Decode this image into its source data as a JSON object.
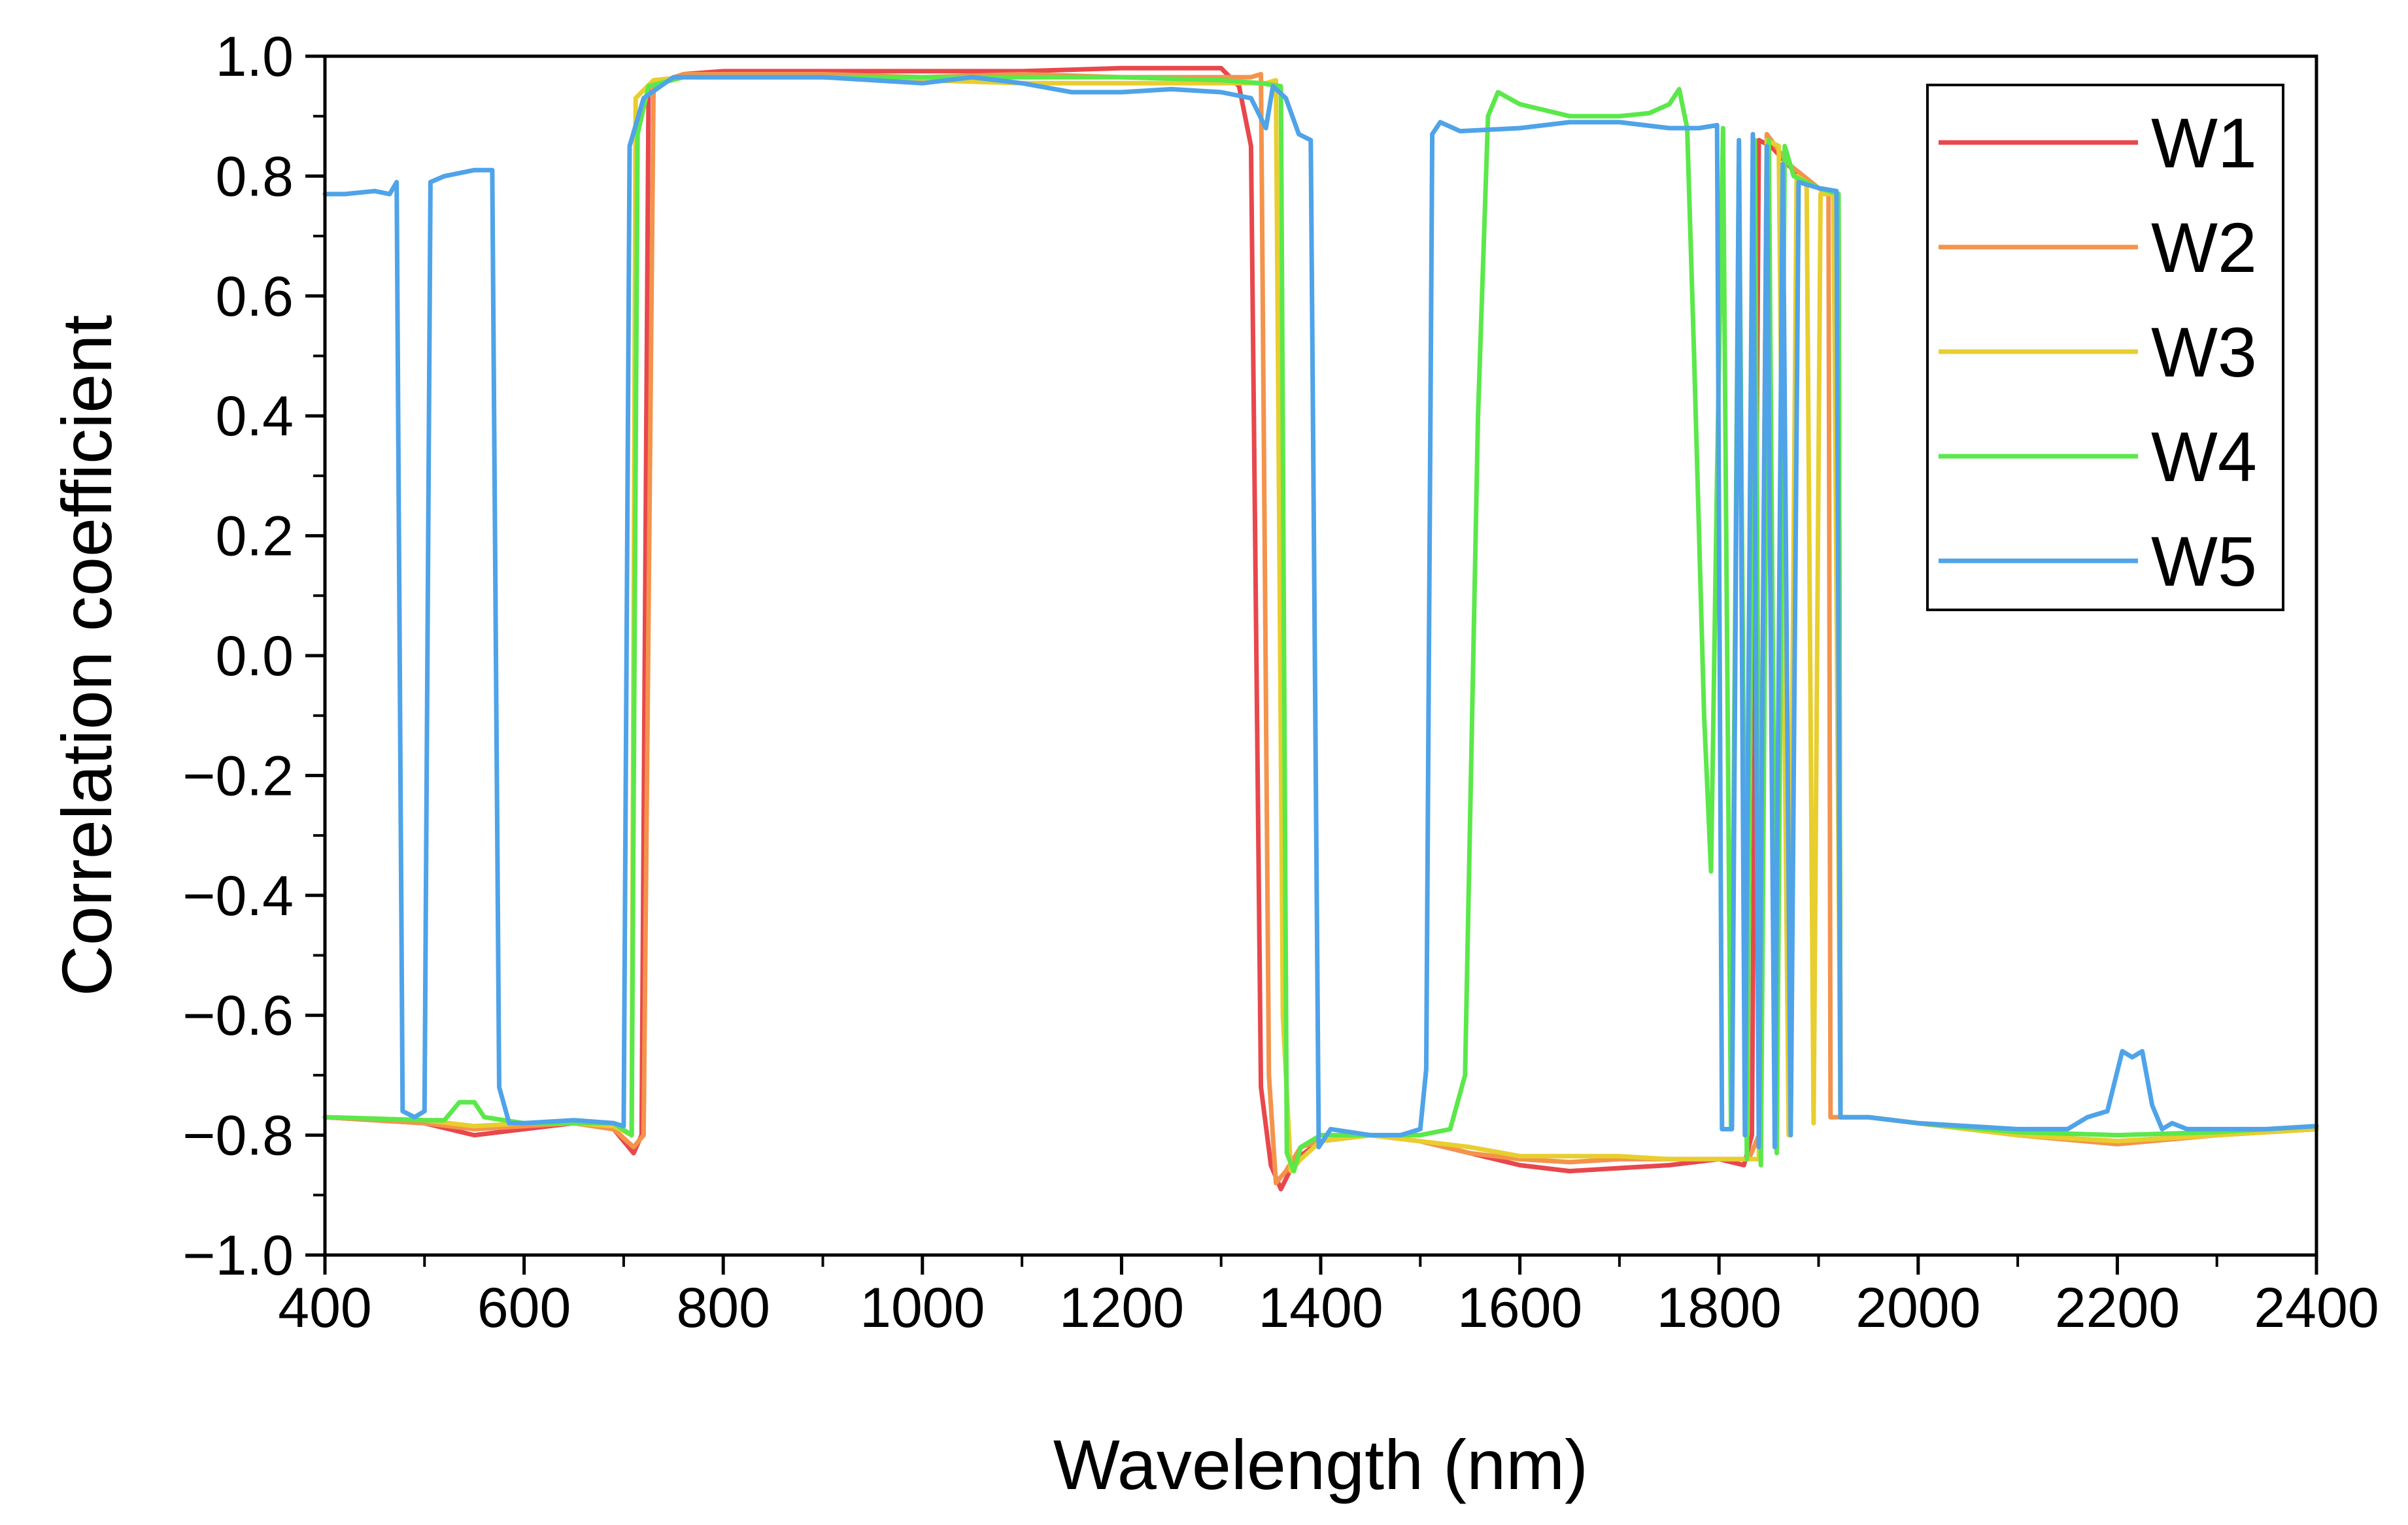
{
  "chart_data": {
    "type": "line",
    "title": "",
    "xlabel": "Wavelength (nm)",
    "ylabel": "Correlation coefficient",
    "xlim": [
      400,
      2400
    ],
    "ylim": [
      -1.0,
      1.0
    ],
    "grid": false,
    "legend_position": "top-right",
    "x_ticks": [
      400,
      600,
      800,
      1000,
      1200,
      1400,
      1600,
      1800,
      2000,
      2200,
      2400
    ],
    "x_tick_labels": [
      "400",
      "600",
      "800",
      "1000",
      "1200",
      "1400",
      "1600",
      "1800",
      "2000",
      "2200",
      "2400"
    ],
    "y_ticks": [
      -1.0,
      -0.8,
      -0.6,
      -0.4,
      -0.2,
      0.0,
      0.2,
      0.4,
      0.6,
      0.8,
      1.0
    ],
    "y_tick_labels": [
      "−1.0",
      "−0.8",
      "−0.6",
      "−0.4",
      "−0.2",
      "0.0",
      "0.2",
      "0.4",
      "0.6",
      "0.8",
      "1.0"
    ],
    "series": [
      {
        "name": "W1",
        "color": "#E8474C",
        "points": [
          [
            400,
            -0.77
          ],
          [
            500,
            -0.78
          ],
          [
            550,
            -0.8
          ],
          [
            600,
            -0.79
          ],
          [
            650,
            -0.78
          ],
          [
            690,
            -0.79
          ],
          [
            710,
            -0.83
          ],
          [
            718,
            -0.8
          ],
          [
            725,
            0.95
          ],
          [
            760,
            0.97
          ],
          [
            800,
            0.975
          ],
          [
            900,
            0.975
          ],
          [
            1000,
            0.975
          ],
          [
            1100,
            0.975
          ],
          [
            1200,
            0.98
          ],
          [
            1300,
            0.98
          ],
          [
            1318,
            0.95
          ],
          [
            1330,
            0.85
          ],
          [
            1340,
            -0.72
          ],
          [
            1350,
            -0.85
          ],
          [
            1360,
            -0.89
          ],
          [
            1375,
            -0.84
          ],
          [
            1400,
            -0.81
          ],
          [
            1450,
            -0.8
          ],
          [
            1500,
            -0.81
          ],
          [
            1550,
            -0.83
          ],
          [
            1600,
            -0.85
          ],
          [
            1650,
            -0.86
          ],
          [
            1700,
            -0.855
          ],
          [
            1750,
            -0.85
          ],
          [
            1800,
            -0.84
          ],
          [
            1825,
            -0.85
          ],
          [
            1833,
            -0.8
          ],
          [
            1840,
            0.86
          ],
          [
            1852,
            0.85
          ],
          [
            1880,
            0.8
          ],
          [
            1900,
            0.78
          ],
          [
            1920,
            0.77
          ],
          [
            1922,
            -0.77
          ],
          [
            1950,
            -0.77
          ],
          [
            2000,
            -0.78
          ],
          [
            2100,
            -0.8
          ],
          [
            2200,
            -0.81
          ],
          [
            2300,
            -0.8
          ],
          [
            2400,
            -0.79
          ]
        ]
      },
      {
        "name": "W2",
        "color": "#F4934C",
        "points": [
          [
            400,
            -0.77
          ],
          [
            500,
            -0.78
          ],
          [
            550,
            -0.79
          ],
          [
            600,
            -0.785
          ],
          [
            650,
            -0.78
          ],
          [
            690,
            -0.79
          ],
          [
            710,
            -0.82
          ],
          [
            720,
            -0.8
          ],
          [
            730,
            0.95
          ],
          [
            760,
            0.97
          ],
          [
            800,
            0.97
          ],
          [
            900,
            0.97
          ],
          [
            1000,
            0.965
          ],
          [
            1100,
            0.97
          ],
          [
            1200,
            0.965
          ],
          [
            1300,
            0.965
          ],
          [
            1330,
            0.965
          ],
          [
            1340,
            0.97
          ],
          [
            1348,
            -0.7
          ],
          [
            1355,
            -0.88
          ],
          [
            1365,
            -0.86
          ],
          [
            1380,
            -0.82
          ],
          [
            1400,
            -0.81
          ],
          [
            1450,
            -0.8
          ],
          [
            1500,
            -0.81
          ],
          [
            1550,
            -0.83
          ],
          [
            1600,
            -0.84
          ],
          [
            1650,
            -0.845
          ],
          [
            1700,
            -0.84
          ],
          [
            1750,
            -0.84
          ],
          [
            1800,
            -0.84
          ],
          [
            1830,
            -0.84
          ],
          [
            1840,
            -0.8
          ],
          [
            1848,
            0.87
          ],
          [
            1870,
            0.82
          ],
          [
            1900,
            0.78
          ],
          [
            1910,
            0.77
          ],
          [
            1912,
            -0.77
          ],
          [
            1950,
            -0.77
          ],
          [
            2000,
            -0.78
          ],
          [
            2100,
            -0.8
          ],
          [
            2200,
            -0.815
          ],
          [
            2300,
            -0.8
          ],
          [
            2400,
            -0.79
          ]
        ]
      },
      {
        "name": "W3",
        "color": "#E8CE2E",
        "points": [
          [
            400,
            -0.77
          ],
          [
            500,
            -0.775
          ],
          [
            550,
            -0.785
          ],
          [
            600,
            -0.78
          ],
          [
            650,
            -0.78
          ],
          [
            690,
            -0.785
          ],
          [
            708,
            -0.8
          ],
          [
            712,
            0.93
          ],
          [
            730,
            0.96
          ],
          [
            760,
            0.965
          ],
          [
            800,
            0.965
          ],
          [
            900,
            0.965
          ],
          [
            1000,
            0.96
          ],
          [
            1100,
            0.955
          ],
          [
            1200,
            0.955
          ],
          [
            1300,
            0.955
          ],
          [
            1345,
            0.955
          ],
          [
            1355,
            0.96
          ],
          [
            1362,
            -0.6
          ],
          [
            1370,
            -0.86
          ],
          [
            1380,
            -0.84
          ],
          [
            1400,
            -0.81
          ],
          [
            1450,
            -0.8
          ],
          [
            1500,
            -0.81
          ],
          [
            1550,
            -0.82
          ],
          [
            1600,
            -0.835
          ],
          [
            1650,
            -0.835
          ],
          [
            1700,
            -0.835
          ],
          [
            1750,
            -0.84
          ],
          [
            1800,
            -0.84
          ],
          [
            1840,
            -0.84
          ],
          [
            1848,
            0.86
          ],
          [
            1860,
            0.85
          ],
          [
            1870,
            -0.8
          ],
          [
            1878,
            0.8
          ],
          [
            1888,
            0.79
          ],
          [
            1895,
            -0.78
          ],
          [
            1902,
            0.77
          ],
          [
            1915,
            0.77
          ],
          [
            1922,
            -0.77
          ],
          [
            1950,
            -0.77
          ],
          [
            2000,
            -0.78
          ],
          [
            2100,
            -0.8
          ],
          [
            2200,
            -0.81
          ],
          [
            2300,
            -0.8
          ],
          [
            2400,
            -0.79
          ]
        ]
      },
      {
        "name": "W4",
        "color": "#5BE84A",
        "points": [
          [
            400,
            -0.77
          ],
          [
            500,
            -0.775
          ],
          [
            520,
            -0.775
          ],
          [
            535,
            -0.745
          ],
          [
            550,
            -0.745
          ],
          [
            560,
            -0.77
          ],
          [
            600,
            -0.78
          ],
          [
            650,
            -0.78
          ],
          [
            690,
            -0.78
          ],
          [
            708,
            -0.8
          ],
          [
            714,
            0.87
          ],
          [
            725,
            0.95
          ],
          [
            760,
            0.965
          ],
          [
            800,
            0.965
          ],
          [
            900,
            0.965
          ],
          [
            1000,
            0.965
          ],
          [
            1100,
            0.965
          ],
          [
            1200,
            0.965
          ],
          [
            1300,
            0.96
          ],
          [
            1340,
            0.955
          ],
          [
            1360,
            0.95
          ],
          [
            1366,
            -0.83
          ],
          [
            1373,
            -0.86
          ],
          [
            1380,
            -0.82
          ],
          [
            1400,
            -0.8
          ],
          [
            1450,
            -0.8
          ],
          [
            1500,
            -0.8
          ],
          [
            1530,
            -0.79
          ],
          [
            1545,
            -0.7
          ],
          [
            1558,
            0.4
          ],
          [
            1568,
            0.9
          ],
          [
            1578,
            0.94
          ],
          [
            1600,
            0.92
          ],
          [
            1650,
            0.9
          ],
          [
            1700,
            0.9
          ],
          [
            1730,
            0.905
          ],
          [
            1750,
            0.92
          ],
          [
            1760,
            0.945
          ],
          [
            1768,
            0.88
          ],
          [
            1775,
            0.5
          ],
          [
            1785,
            -0.1
          ],
          [
            1792,
            -0.36
          ],
          [
            1798,
            0.3
          ],
          [
            1804,
            0.88
          ],
          [
            1812,
            -0.79
          ],
          [
            1820,
            0.85
          ],
          [
            1828,
            -0.84
          ],
          [
            1836,
            0.86
          ],
          [
            1842,
            -0.85
          ],
          [
            1850,
            0.86
          ],
          [
            1858,
            -0.83
          ],
          [
            1866,
            0.85
          ],
          [
            1875,
            0.8
          ],
          [
            1900,
            0.78
          ],
          [
            1920,
            0.77
          ],
          [
            1922,
            -0.77
          ],
          [
            1950,
            -0.77
          ],
          [
            2000,
            -0.78
          ],
          [
            2100,
            -0.795
          ],
          [
            2200,
            -0.8
          ],
          [
            2300,
            -0.795
          ],
          [
            2400,
            -0.785
          ]
        ]
      },
      {
        "name": "W5",
        "color": "#4FA3E8",
        "points": [
          [
            400,
            0.77
          ],
          [
            420,
            0.77
          ],
          [
            450,
            0.775
          ],
          [
            465,
            0.77
          ],
          [
            472,
            0.79
          ],
          [
            478,
            -0.76
          ],
          [
            490,
            -0.77
          ],
          [
            500,
            -0.76
          ],
          [
            506,
            0.79
          ],
          [
            520,
            0.8
          ],
          [
            550,
            0.81
          ],
          [
            568,
            0.81
          ],
          [
            575,
            -0.72
          ],
          [
            585,
            -0.78
          ],
          [
            600,
            -0.78
          ],
          [
            650,
            -0.775
          ],
          [
            690,
            -0.78
          ],
          [
            700,
            -0.785
          ],
          [
            706,
            0.85
          ],
          [
            720,
            0.93
          ],
          [
            750,
            0.965
          ],
          [
            800,
            0.965
          ],
          [
            900,
            0.965
          ],
          [
            1000,
            0.955
          ],
          [
            1050,
            0.965
          ],
          [
            1100,
            0.955
          ],
          [
            1150,
            0.94
          ],
          [
            1200,
            0.94
          ],
          [
            1250,
            0.945
          ],
          [
            1300,
            0.94
          ],
          [
            1330,
            0.93
          ],
          [
            1345,
            0.88
          ],
          [
            1352,
            0.95
          ],
          [
            1365,
            0.93
          ],
          [
            1378,
            0.87
          ],
          [
            1390,
            0.86
          ],
          [
            1398,
            -0.82
          ],
          [
            1410,
            -0.79
          ],
          [
            1450,
            -0.8
          ],
          [
            1480,
            -0.8
          ],
          [
            1500,
            -0.79
          ],
          [
            1506,
            -0.69
          ],
          [
            1512,
            0.87
          ],
          [
            1520,
            0.89
          ],
          [
            1540,
            0.875
          ],
          [
            1600,
            0.88
          ],
          [
            1650,
            0.89
          ],
          [
            1700,
            0.89
          ],
          [
            1750,
            0.88
          ],
          [
            1780,
            0.88
          ],
          [
            1798,
            0.885
          ],
          [
            1803,
            -0.79
          ],
          [
            1813,
            -0.79
          ],
          [
            1820,
            0.86
          ],
          [
            1826,
            -0.8
          ],
          [
            1834,
            0.87
          ],
          [
            1840,
            -0.82
          ],
          [
            1848,
            0.85
          ],
          [
            1856,
            -0.82
          ],
          [
            1864,
            0.82
          ],
          [
            1872,
            -0.8
          ],
          [
            1880,
            0.79
          ],
          [
            1900,
            0.78
          ],
          [
            1918,
            0.775
          ],
          [
            1922,
            -0.77
          ],
          [
            1950,
            -0.77
          ],
          [
            2000,
            -0.78
          ],
          [
            2100,
            -0.79
          ],
          [
            2150,
            -0.79
          ],
          [
            2170,
            -0.77
          ],
          [
            2190,
            -0.76
          ],
          [
            2205,
            -0.66
          ],
          [
            2215,
            -0.67
          ],
          [
            2225,
            -0.66
          ],
          [
            2235,
            -0.75
          ],
          [
            2245,
            -0.79
          ],
          [
            2255,
            -0.78
          ],
          [
            2270,
            -0.79
          ],
          [
            2300,
            -0.79
          ],
          [
            2350,
            -0.79
          ],
          [
            2400,
            -0.785
          ]
        ]
      }
    ]
  }
}
